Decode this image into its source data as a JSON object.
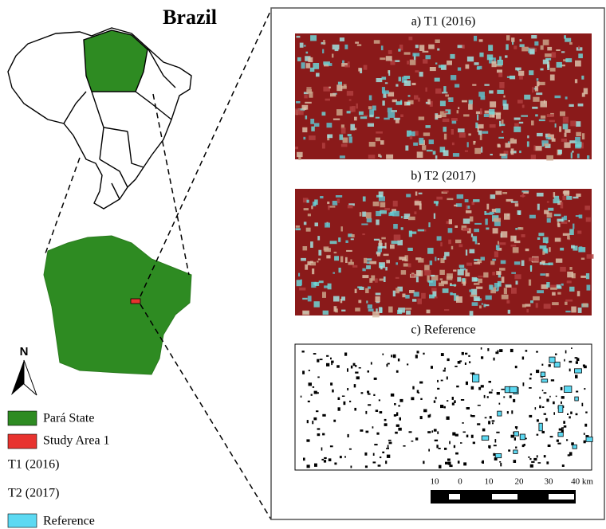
{
  "title": "Brazil",
  "panels": [
    "a) T1 (2016)",
    "b) T2 (2017)",
    "c) Reference"
  ],
  "north_label": "N",
  "scale_bar": {
    "labels": [
      "10",
      "0",
      "10",
      "20",
      "30",
      "40 km"
    ]
  },
  "legend": [
    "Pará State",
    "Study Area 1",
    "T1 (2016)",
    "T2 (2017)",
    "Reference"
  ]
}
